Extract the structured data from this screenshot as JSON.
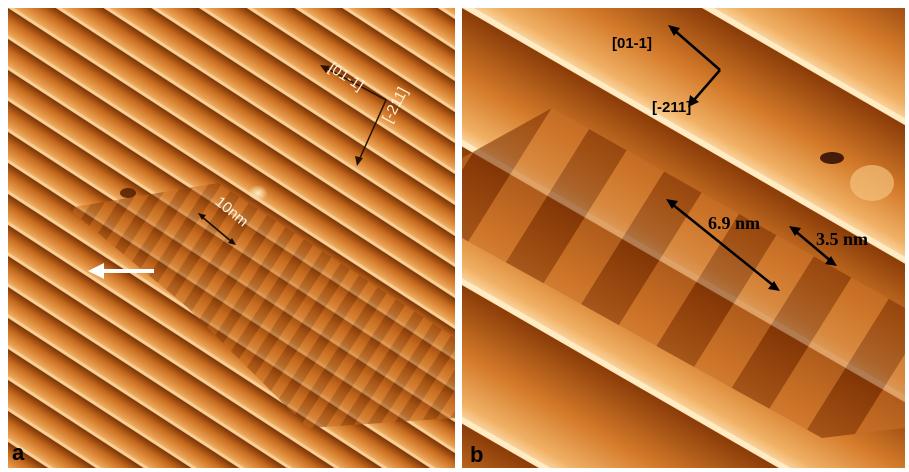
{
  "panels": [
    {
      "id": "a",
      "letter": "a",
      "direction_labels": [
        "[01-1]",
        "[-211]"
      ],
      "scale_label": "10nm",
      "arrow_direction": "left"
    },
    {
      "id": "b",
      "letter": "b",
      "direction_labels": [
        "[01-1]",
        "[-211]"
      ],
      "measurements": [
        "6.9 nm",
        "3.5 nm"
      ]
    }
  ],
  "colors": {
    "substrate_dark": "#7a3406",
    "substrate_mid": "#c66a1e",
    "substrate_light": "#f0b46a",
    "highlight": "#ffe8c0"
  }
}
